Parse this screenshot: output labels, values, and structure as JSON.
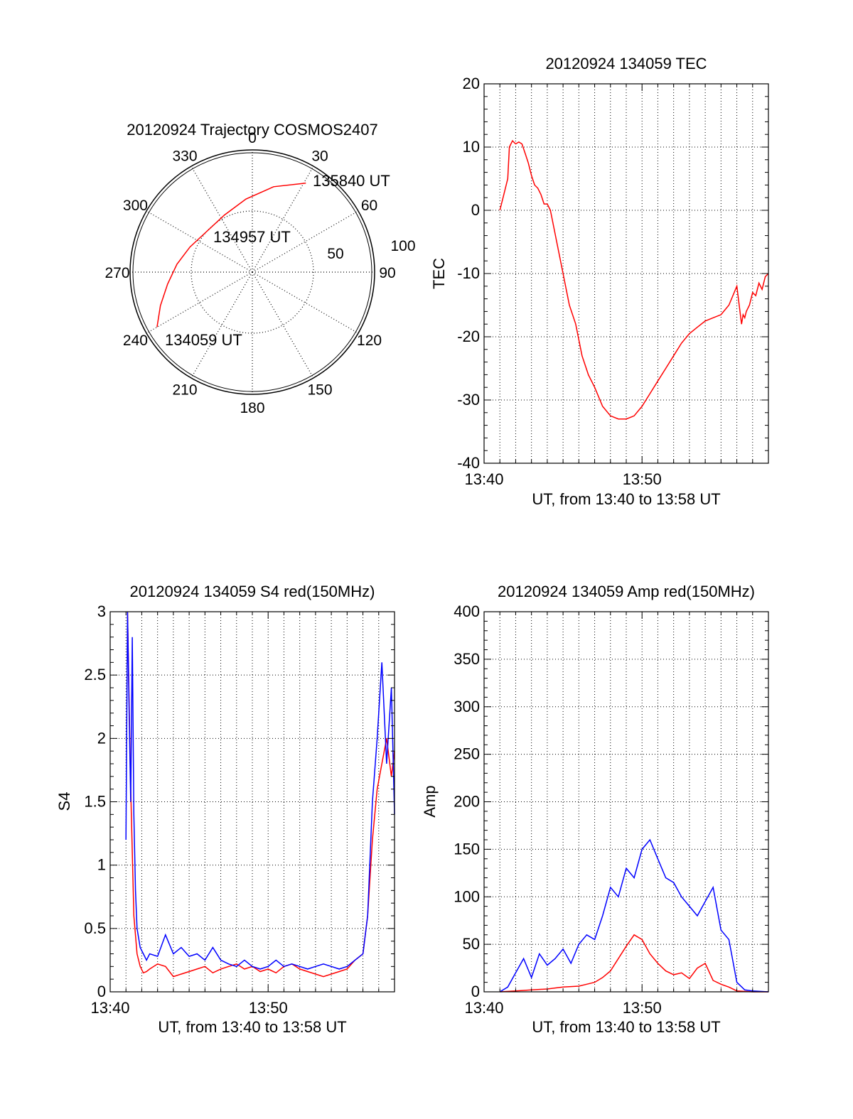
{
  "colors": {
    "red_series": "#ff0000",
    "blue_series": "#0000ff",
    "grid": "#000000",
    "axis": "#000000"
  },
  "chart_data": [
    {
      "id": "trajectory",
      "type": "scatter",
      "projection": "polar",
      "title": "20120924 Trajectory COSMOS2407",
      "angle_labels": [
        "0",
        "30",
        "60",
        "90",
        "120",
        "150",
        "180",
        "210",
        "240",
        "270",
        "300",
        "330"
      ],
      "radial_labels": [
        "50",
        "100"
      ],
      "radius_max": 100,
      "grid": true,
      "annotations": [
        "135840 UT",
        "134957 UT",
        "134059 UT"
      ],
      "series": [
        {
          "color": "#ff0000",
          "points": [
            [
              240,
              90
            ],
            [
              250,
              80
            ],
            [
              262,
              70
            ],
            [
              276,
              62
            ],
            [
              292,
              55
            ],
            [
              312,
              50
            ],
            [
              334,
              52
            ],
            [
              355,
              60
            ],
            [
              14,
              72
            ],
            [
              31,
              85
            ]
          ]
        }
      ]
    },
    {
      "id": "tec",
      "type": "line",
      "title": "20120924 134059 TEC",
      "xlabel": "UT, from 13:40 to 13:58 UT",
      "ylabel": "TEC",
      "xlim": [
        0,
        18
      ],
      "ylim": [
        -40,
        20
      ],
      "xticks": [
        0,
        10
      ],
      "xticklabels": [
        "13:40",
        "13:50"
      ],
      "yticks": [
        -40,
        -30,
        -20,
        -10,
        0,
        10,
        20
      ],
      "yticklabels": [
        "-40",
        "-30",
        "-20",
        "-10",
        "0",
        "10",
        "20"
      ],
      "grid": true,
      "series": [
        {
          "color": "#ff0000",
          "x": [
            1.0,
            1.2,
            1.3,
            1.5,
            1.6,
            1.8,
            2.0,
            2.2,
            2.4,
            2.6,
            2.8,
            3.0,
            3.2,
            3.4,
            3.6,
            3.8,
            4.0,
            4.2,
            4.6,
            5.0,
            5.4,
            5.8,
            6.2,
            6.6,
            7.0,
            7.5,
            8.0,
            8.5,
            9.0,
            9.5,
            10.0,
            10.5,
            11.0,
            11.5,
            12.0,
            12.5,
            13.0,
            13.5,
            14.0,
            14.5,
            15.0,
            15.5,
            16.0,
            16.3,
            16.4,
            16.5,
            16.6,
            16.8,
            17.0,
            17.2,
            17.4,
            17.6,
            17.8,
            18.0
          ],
          "values": [
            0,
            2,
            3,
            5,
            10,
            11,
            10.5,
            10.8,
            10.5,
            9,
            7.5,
            5.5,
            4,
            3.5,
            2.5,
            1,
            1,
            0,
            -5,
            -10,
            -15,
            -18,
            -23,
            -26,
            -28,
            -31,
            -32.5,
            -33,
            -33,
            -32.5,
            -31,
            -29,
            -27,
            -25,
            -23,
            -21,
            -19.5,
            -18.5,
            -17.5,
            -17,
            -16.5,
            -15,
            -12,
            -18,
            -16.5,
            -17,
            -16,
            -15,
            -13,
            -13.5,
            -11.5,
            -12.5,
            -10.5,
            -10
          ]
        }
      ]
    },
    {
      "id": "s4",
      "type": "line",
      "title": "20120924 134059 S4 red(150MHz)",
      "xlabel": "UT, from 13:40 to 13:58 UT",
      "ylabel": "S4",
      "xlim": [
        0,
        18
      ],
      "ylim": [
        0,
        3
      ],
      "xticks": [
        0,
        10
      ],
      "xticklabels": [
        "13:40",
        "13:50"
      ],
      "yticks": [
        0,
        0.5,
        1,
        1.5,
        2,
        2.5,
        3
      ],
      "yticklabels": [
        "0",
        "0.5",
        "1",
        "1.5",
        "2",
        "2.5",
        "3"
      ],
      "grid": true,
      "series": [
        {
          "color": "#ff0000",
          "x": [
            1.1,
            1.3,
            1.5,
            1.7,
            1.9,
            2.1,
            2.3,
            2.5,
            3.0,
            3.5,
            4.0,
            4.5,
            5.0,
            5.5,
            6.0,
            6.5,
            7.0,
            7.5,
            8.0,
            8.5,
            9.0,
            9.5,
            10.0,
            10.5,
            11.0,
            11.5,
            12.0,
            12.5,
            13.0,
            13.5,
            14.0,
            14.5,
            15.0,
            15.5,
            16.0,
            16.3,
            16.6,
            16.9,
            17.2,
            17.5,
            17.8,
            18.0
          ],
          "values": [
            3.0,
            1.6,
            0.6,
            0.3,
            0.2,
            0.15,
            0.16,
            0.18,
            0.22,
            0.2,
            0.12,
            0.14,
            0.16,
            0.18,
            0.2,
            0.15,
            0.18,
            0.2,
            0.22,
            0.18,
            0.2,
            0.16,
            0.18,
            0.15,
            0.2,
            0.22,
            0.18,
            0.16,
            0.14,
            0.12,
            0.14,
            0.16,
            0.18,
            0.25,
            0.3,
            0.6,
            1.2,
            1.6,
            1.8,
            2.0,
            1.7,
            1.9
          ]
        },
        {
          "color": "#0000ff",
          "x": [
            1.0,
            1.1,
            1.2,
            1.3,
            1.4,
            1.5,
            1.6,
            1.7,
            1.9,
            2.1,
            2.3,
            2.5,
            3.0,
            3.5,
            4.0,
            4.5,
            5.0,
            5.5,
            6.0,
            6.5,
            7.0,
            7.5,
            8.0,
            8.5,
            9.0,
            9.5,
            10.0,
            10.5,
            11.0,
            11.5,
            12.0,
            12.5,
            13.0,
            13.5,
            14.0,
            14.5,
            15.0,
            15.5,
            16.0,
            16.3,
            16.6,
            16.9,
            17.2,
            17.5,
            17.8,
            18.0
          ],
          "values": [
            1.2,
            3.0,
            2.2,
            1.5,
            2.8,
            1.4,
            0.8,
            0.5,
            0.35,
            0.3,
            0.25,
            0.3,
            0.28,
            0.45,
            0.3,
            0.35,
            0.28,
            0.3,
            0.25,
            0.35,
            0.25,
            0.22,
            0.2,
            0.25,
            0.2,
            0.18,
            0.2,
            0.25,
            0.2,
            0.22,
            0.2,
            0.18,
            0.2,
            0.22,
            0.2,
            0.18,
            0.2,
            0.25,
            0.3,
            0.6,
            1.5,
            2.0,
            2.6,
            1.8,
            2.4,
            1.4
          ]
        }
      ]
    },
    {
      "id": "amp",
      "type": "line",
      "title": "20120924 134059 Amp red(150MHz)",
      "xlabel": "UT, from 13:40 to 13:58 UT",
      "ylabel": "Amp",
      "xlim": [
        0,
        18
      ],
      "ylim": [
        0,
        400
      ],
      "xticks": [
        0,
        10
      ],
      "xticklabels": [
        "13:40",
        "13:50"
      ],
      "yticks": [
        0,
        50,
        100,
        150,
        200,
        250,
        300,
        350,
        400
      ],
      "yticklabels": [
        "0",
        "50",
        "100",
        "150",
        "200",
        "250",
        "300",
        "350",
        "400"
      ],
      "grid": true,
      "series": [
        {
          "color": "#ff0000",
          "x": [
            1.0,
            2.0,
            3.0,
            4.0,
            5.0,
            6.0,
            6.5,
            7.0,
            7.5,
            8.0,
            8.5,
            9.0,
            9.5,
            10.0,
            10.5,
            11.0,
            11.5,
            12.0,
            12.5,
            13.0,
            13.5,
            14.0,
            14.5,
            15.0,
            15.5,
            16.0,
            17.0,
            18.0
          ],
          "values": [
            0,
            1,
            2,
            3,
            5,
            6,
            8,
            10,
            15,
            22,
            35,
            48,
            60,
            55,
            40,
            30,
            22,
            18,
            20,
            14,
            25,
            30,
            12,
            8,
            5,
            1,
            0,
            0
          ]
        },
        {
          "color": "#0000ff",
          "x": [
            1.0,
            1.5,
            2.0,
            2.5,
            3.0,
            3.5,
            4.0,
            4.5,
            5.0,
            5.5,
            6.0,
            6.5,
            7.0,
            7.5,
            8.0,
            8.5,
            9.0,
            9.5,
            10.0,
            10.5,
            11.0,
            11.5,
            12.0,
            12.5,
            13.0,
            13.5,
            14.0,
            14.5,
            15.0,
            15.5,
            16.0,
            16.5,
            17.0,
            18.0
          ],
          "values": [
            0,
            5,
            20,
            35,
            15,
            40,
            28,
            35,
            45,
            30,
            50,
            60,
            55,
            80,
            110,
            100,
            130,
            120,
            150,
            160,
            140,
            120,
            115,
            100,
            90,
            80,
            95,
            110,
            65,
            55,
            10,
            2,
            1,
            0
          ]
        }
      ]
    }
  ]
}
